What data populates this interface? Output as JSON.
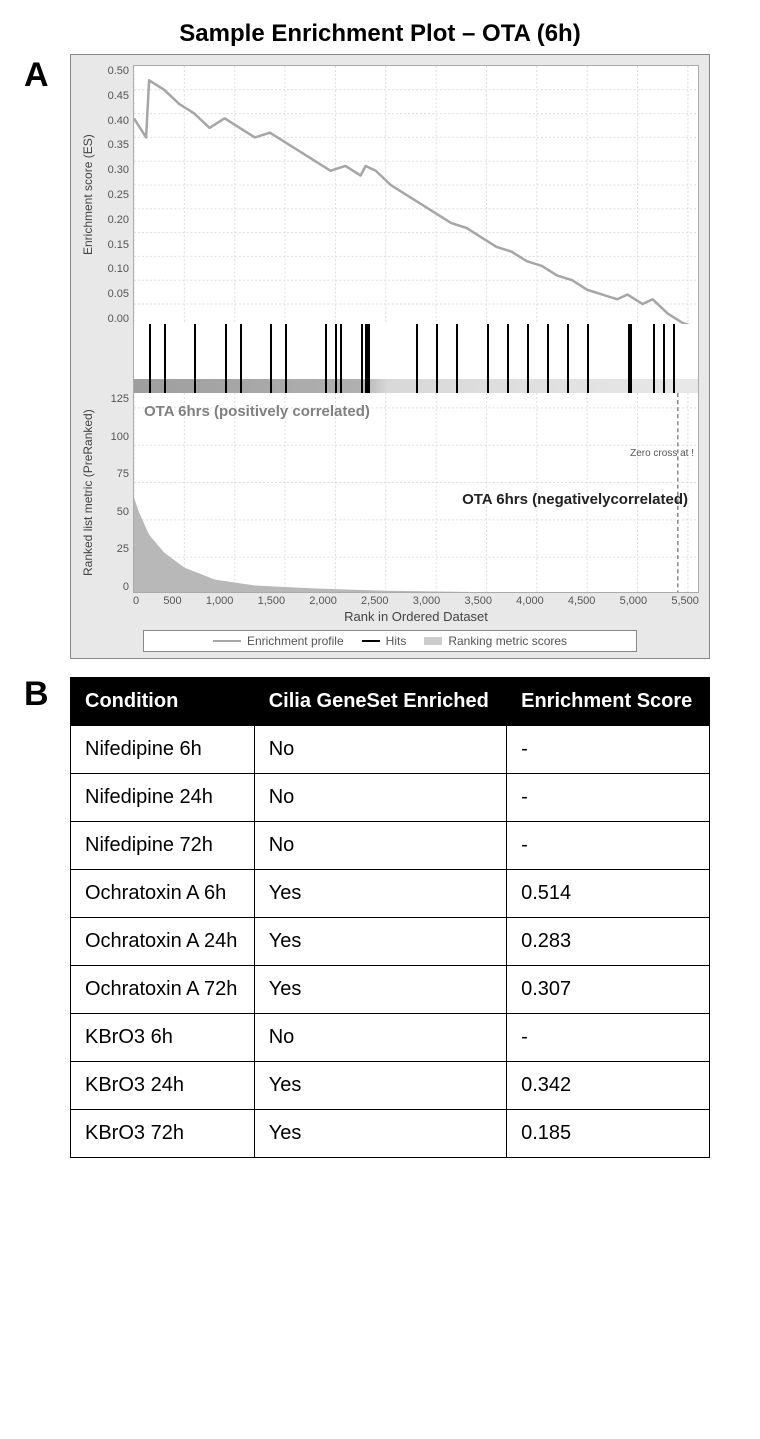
{
  "figure_title": "Sample Enrichment Plot – OTA (6h)",
  "panel_labels": {
    "a": "A",
    "b": "B"
  },
  "es_chart": {
    "type": "line",
    "ylabel": "Enrichment score (ES)",
    "yticks": [
      "0.50",
      "0.45",
      "0.40",
      "0.35",
      "0.30",
      "0.25",
      "0.20",
      "0.15",
      "0.10",
      "0.05",
      "0.00"
    ],
    "ylim_min": 0.0,
    "ylim_max": 0.55,
    "x_max": 5600,
    "line_color": "#a6a6a6",
    "grid_color": "#dddddd",
    "background_color": "#ffffff",
    "data": [
      [
        0,
        0.44
      ],
      [
        120,
        0.4
      ],
      [
        150,
        0.52
      ],
      [
        300,
        0.5
      ],
      [
        450,
        0.47
      ],
      [
        600,
        0.45
      ],
      [
        750,
        0.42
      ],
      [
        900,
        0.44
      ],
      [
        1050,
        0.42
      ],
      [
        1200,
        0.4
      ],
      [
        1350,
        0.41
      ],
      [
        1500,
        0.39
      ],
      [
        1650,
        0.37
      ],
      [
        1800,
        0.35
      ],
      [
        1950,
        0.33
      ],
      [
        2100,
        0.34
      ],
      [
        2250,
        0.32
      ],
      [
        2300,
        0.34
      ],
      [
        2400,
        0.33
      ],
      [
        2550,
        0.3
      ],
      [
        2700,
        0.28
      ],
      [
        2850,
        0.26
      ],
      [
        3000,
        0.24
      ],
      [
        3150,
        0.22
      ],
      [
        3300,
        0.21
      ],
      [
        3450,
        0.19
      ],
      [
        3600,
        0.17
      ],
      [
        3750,
        0.16
      ],
      [
        3900,
        0.14
      ],
      [
        4050,
        0.13
      ],
      [
        4200,
        0.11
      ],
      [
        4350,
        0.1
      ],
      [
        4500,
        0.08
      ],
      [
        4650,
        0.07
      ],
      [
        4800,
        0.06
      ],
      [
        4900,
        0.07
      ],
      [
        5050,
        0.05
      ],
      [
        5150,
        0.06
      ],
      [
        5300,
        0.03
      ],
      [
        5450,
        0.01
      ],
      [
        5600,
        0.0
      ]
    ]
  },
  "hits": {
    "x_max": 5600,
    "positions": [
      150,
      300,
      600,
      900,
      1050,
      1350,
      1500,
      1900,
      2000,
      2050,
      2250,
      2290,
      2310,
      2320,
      2800,
      3000,
      3200,
      3500,
      3700,
      3900,
      4100,
      4300,
      4500,
      4900,
      4920,
      5150,
      5250,
      5350
    ]
  },
  "ranked_chart": {
    "type": "area",
    "ylabel": "Ranked list metric (PreRanked)",
    "yticks": [
      "125",
      "100",
      "75",
      "50",
      "25",
      "0"
    ],
    "ylim_max": 135,
    "x_max": 5600,
    "pos_label": "OTA 6hrs (positively correlated)",
    "neg_label": "OTA 6hrs (negativelycorrelated)",
    "zero_label": "Zero cross at !",
    "zero_cross_x": 5400,
    "grid_color": "#dddddd",
    "fill_color": "#b8b8b8",
    "data": [
      [
        0,
        65
      ],
      [
        50,
        55
      ],
      [
        150,
        40
      ],
      [
        300,
        28
      ],
      [
        500,
        18
      ],
      [
        800,
        10
      ],
      [
        1200,
        6
      ],
      [
        1800,
        4
      ],
      [
        2500,
        2.5
      ],
      [
        3500,
        1.5
      ],
      [
        4500,
        0.8
      ],
      [
        5200,
        0.3
      ],
      [
        5350,
        0.1
      ],
      [
        5600,
        0
      ]
    ]
  },
  "x_axis": {
    "label": "Rank in Ordered Dataset",
    "ticks": [
      "0",
      "500",
      "1,000",
      "1,500",
      "2,000",
      "2,500",
      "3,000",
      "3,500",
      "4,000",
      "4,500",
      "5,000",
      "5,500"
    ]
  },
  "legend": {
    "items": [
      "Enrichment profile",
      "Hits",
      "Ranking metric scores"
    ]
  },
  "table": {
    "columns": [
      "Condition",
      "Cilia GeneSet Enriched",
      "Enrichment Score"
    ],
    "rows": [
      [
        "Nifedipine 6h",
        "No",
        "-"
      ],
      [
        "Nifedipine 24h",
        "No",
        "-"
      ],
      [
        "Nifedipine 72h",
        "No",
        "-"
      ],
      [
        "Ochratoxin A 6h",
        "Yes",
        "0.514"
      ],
      [
        "Ochratoxin A 24h",
        "Yes",
        "0.283"
      ],
      [
        "Ochratoxin A 72h",
        "Yes",
        "0.307"
      ],
      [
        "KBrO3 6h",
        "No",
        "-"
      ],
      [
        "KBrO3 24h",
        "Yes",
        "0.342"
      ],
      [
        "KBrO3 72h",
        "Yes",
        "0.185"
      ]
    ],
    "header_bg": "#000000",
    "header_fg": "#ffffff",
    "border_color": "#000000"
  }
}
